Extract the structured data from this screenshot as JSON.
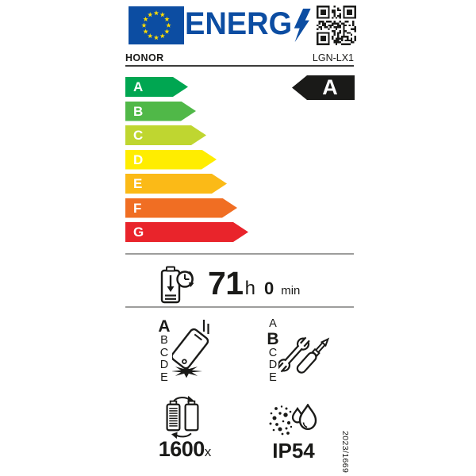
{
  "label": {
    "header": {
      "logo_text": "ENERG",
      "brand": "HONOR",
      "model": "LGN-LX1"
    },
    "energy_scale": {
      "classes": [
        {
          "label": "A",
          "color": "#00A651",
          "width": 79
        },
        {
          "label": "B",
          "color": "#50B848",
          "width": 89
        },
        {
          "label": "C",
          "color": "#BFD630",
          "width": 102
        },
        {
          "label": "D",
          "color": "#FFED00",
          "width": 115
        },
        {
          "label": "E",
          "color": "#FBBA17",
          "width": 128
        },
        {
          "label": "F",
          "color": "#F06E23",
          "width": 141
        },
        {
          "label": "G",
          "color": "#E9242B",
          "width": 155
        }
      ],
      "rating": "A"
    },
    "battery_endurance": {
      "hours": "71",
      "hours_unit": "h",
      "minutes": "0",
      "minutes_unit": "min"
    },
    "drop_reliability": {
      "classes": [
        "A",
        "B",
        "C",
        "D",
        "E"
      ],
      "rating": "A"
    },
    "repairability": {
      "classes": [
        "A",
        "B",
        "C",
        "D",
        "E"
      ],
      "rating": "B"
    },
    "battery_cycles": {
      "count": "1600",
      "suffix": "x"
    },
    "ingress_protection": {
      "rating": "IP54"
    },
    "regulation_number": "2023/1669",
    "icons": {
      "flag": "eu-flag",
      "logo_bolt": "lightning-bolt",
      "qr": "qr-code",
      "endurance": "battery-with-clock",
      "drop_reliability": "falling-phone",
      "repairability": "wrench-and-screwdriver",
      "battery_cycles": "two-batteries-cycle",
      "ingress_protection": "dust-and-water-drops"
    },
    "colors": {
      "logo_blue": "#0C4DA2",
      "flag_star_yellow": "#FFDD00",
      "rating_arrow_bg": "#1A1A18",
      "divider_gray": "#9D9D9C",
      "text": "#1A1A18"
    }
  }
}
